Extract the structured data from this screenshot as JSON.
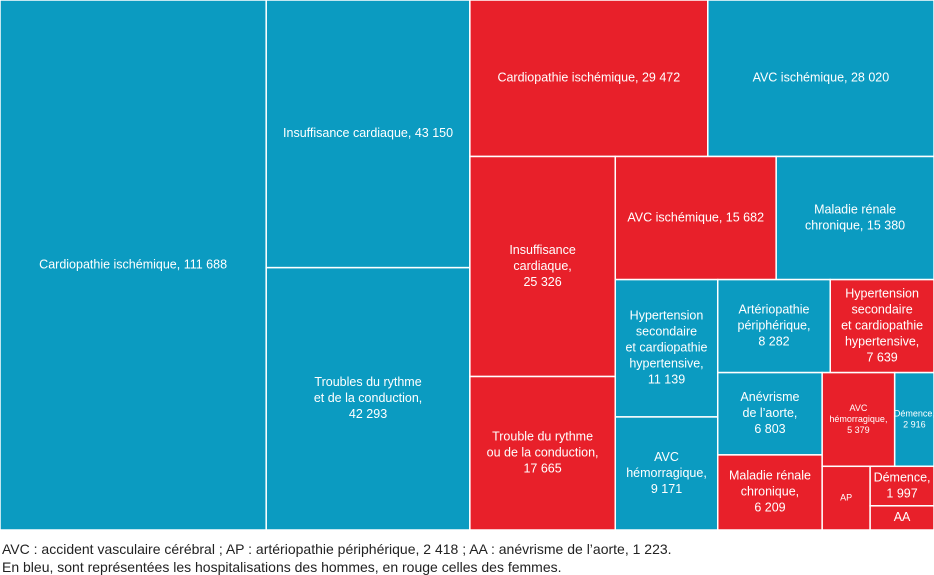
{
  "chart_data": {
    "type": "treemap",
    "nodes": [
      {
        "label": [
          "Cardiopathie ischémique, 111 688"
        ],
        "value": 111688,
        "color": "#0b9bc1"
      },
      {
        "label": [
          "Insuffisance cardiaque, 43 150"
        ],
        "value": 43150,
        "color": "#0b9bc1"
      },
      {
        "label": [
          "Troubles du rythme",
          "et de la conduction,",
          "42 293"
        ],
        "value": 42293,
        "color": "#0b9bc1"
      },
      {
        "label": [
          "Cardiopathie ischémique, 29 472"
        ],
        "value": 29472,
        "color": "#e8202a"
      },
      {
        "label": [
          "AVC ischémique, 28 020"
        ],
        "value": 28020,
        "color": "#0b9bc1"
      },
      {
        "label": [
          "Insuffisance",
          "cardiaque,",
          "25 326"
        ],
        "value": 25326,
        "color": "#e8202a"
      },
      {
        "label": [
          "Trouble du rythme",
          "ou de la conduction,",
          "17 665"
        ],
        "value": 17665,
        "color": "#e8202a"
      },
      {
        "label": [
          "AVC ischémique, 15 682"
        ],
        "value": 15682,
        "color": "#e8202a"
      },
      {
        "label": [
          "Maladie rénale",
          "chronique, 15 380"
        ],
        "value": 15380,
        "color": "#0b9bc1"
      },
      {
        "label": [
          "Hypertension",
          "secondaire",
          "et cardiopathie",
          "hypertensive,",
          "11 139"
        ],
        "value": 11139,
        "color": "#0b9bc1"
      },
      {
        "label": [
          "AVC",
          "hémorragique,",
          "9 171"
        ],
        "value": 9171,
        "color": "#0b9bc1"
      },
      {
        "label": [
          "Artériopathie",
          "périphérique,",
          "8 282"
        ],
        "value": 8282,
        "color": "#0b9bc1"
      },
      {
        "label": [
          "Hypertension",
          "secondaire",
          "et cardiopathie",
          "hypertensive,",
          "7 639"
        ],
        "value": 7639,
        "color": "#e8202a"
      },
      {
        "label": [
          "Anévrisme",
          "de l’aorte,",
          "6 803"
        ],
        "value": 6803,
        "color": "#0b9bc1"
      },
      {
        "label": [
          "Maladie rénale",
          "chronique,",
          "6 209"
        ],
        "value": 6209,
        "color": "#e8202a"
      },
      {
        "label": [
          "AVC",
          "hémorragique,",
          "5 379"
        ],
        "value": 5379,
        "color": "#e8202a"
      },
      {
        "label": [
          "Démence,",
          "2 916"
        ],
        "value": 2916,
        "color": "#0b9bc1"
      },
      {
        "label": [
          "AP"
        ],
        "value": 2418,
        "color": "#e8202a"
      },
      {
        "label": [
          "Démence,",
          "1 997"
        ],
        "value": 1997,
        "color": "#e8202a"
      },
      {
        "label": [
          "AA"
        ],
        "value": 1223,
        "color": "#e8202a"
      }
    ],
    "notes": [
      "AVC : accident vasculaire cérébral ; AP : artériopathie périphérique, 2 418 ; AA : anévrisme de l’aorte, 1 223.",
      "En bleu, sont représentées les hospitalisations des hommes, en rouge celles des femmes."
    ]
  }
}
